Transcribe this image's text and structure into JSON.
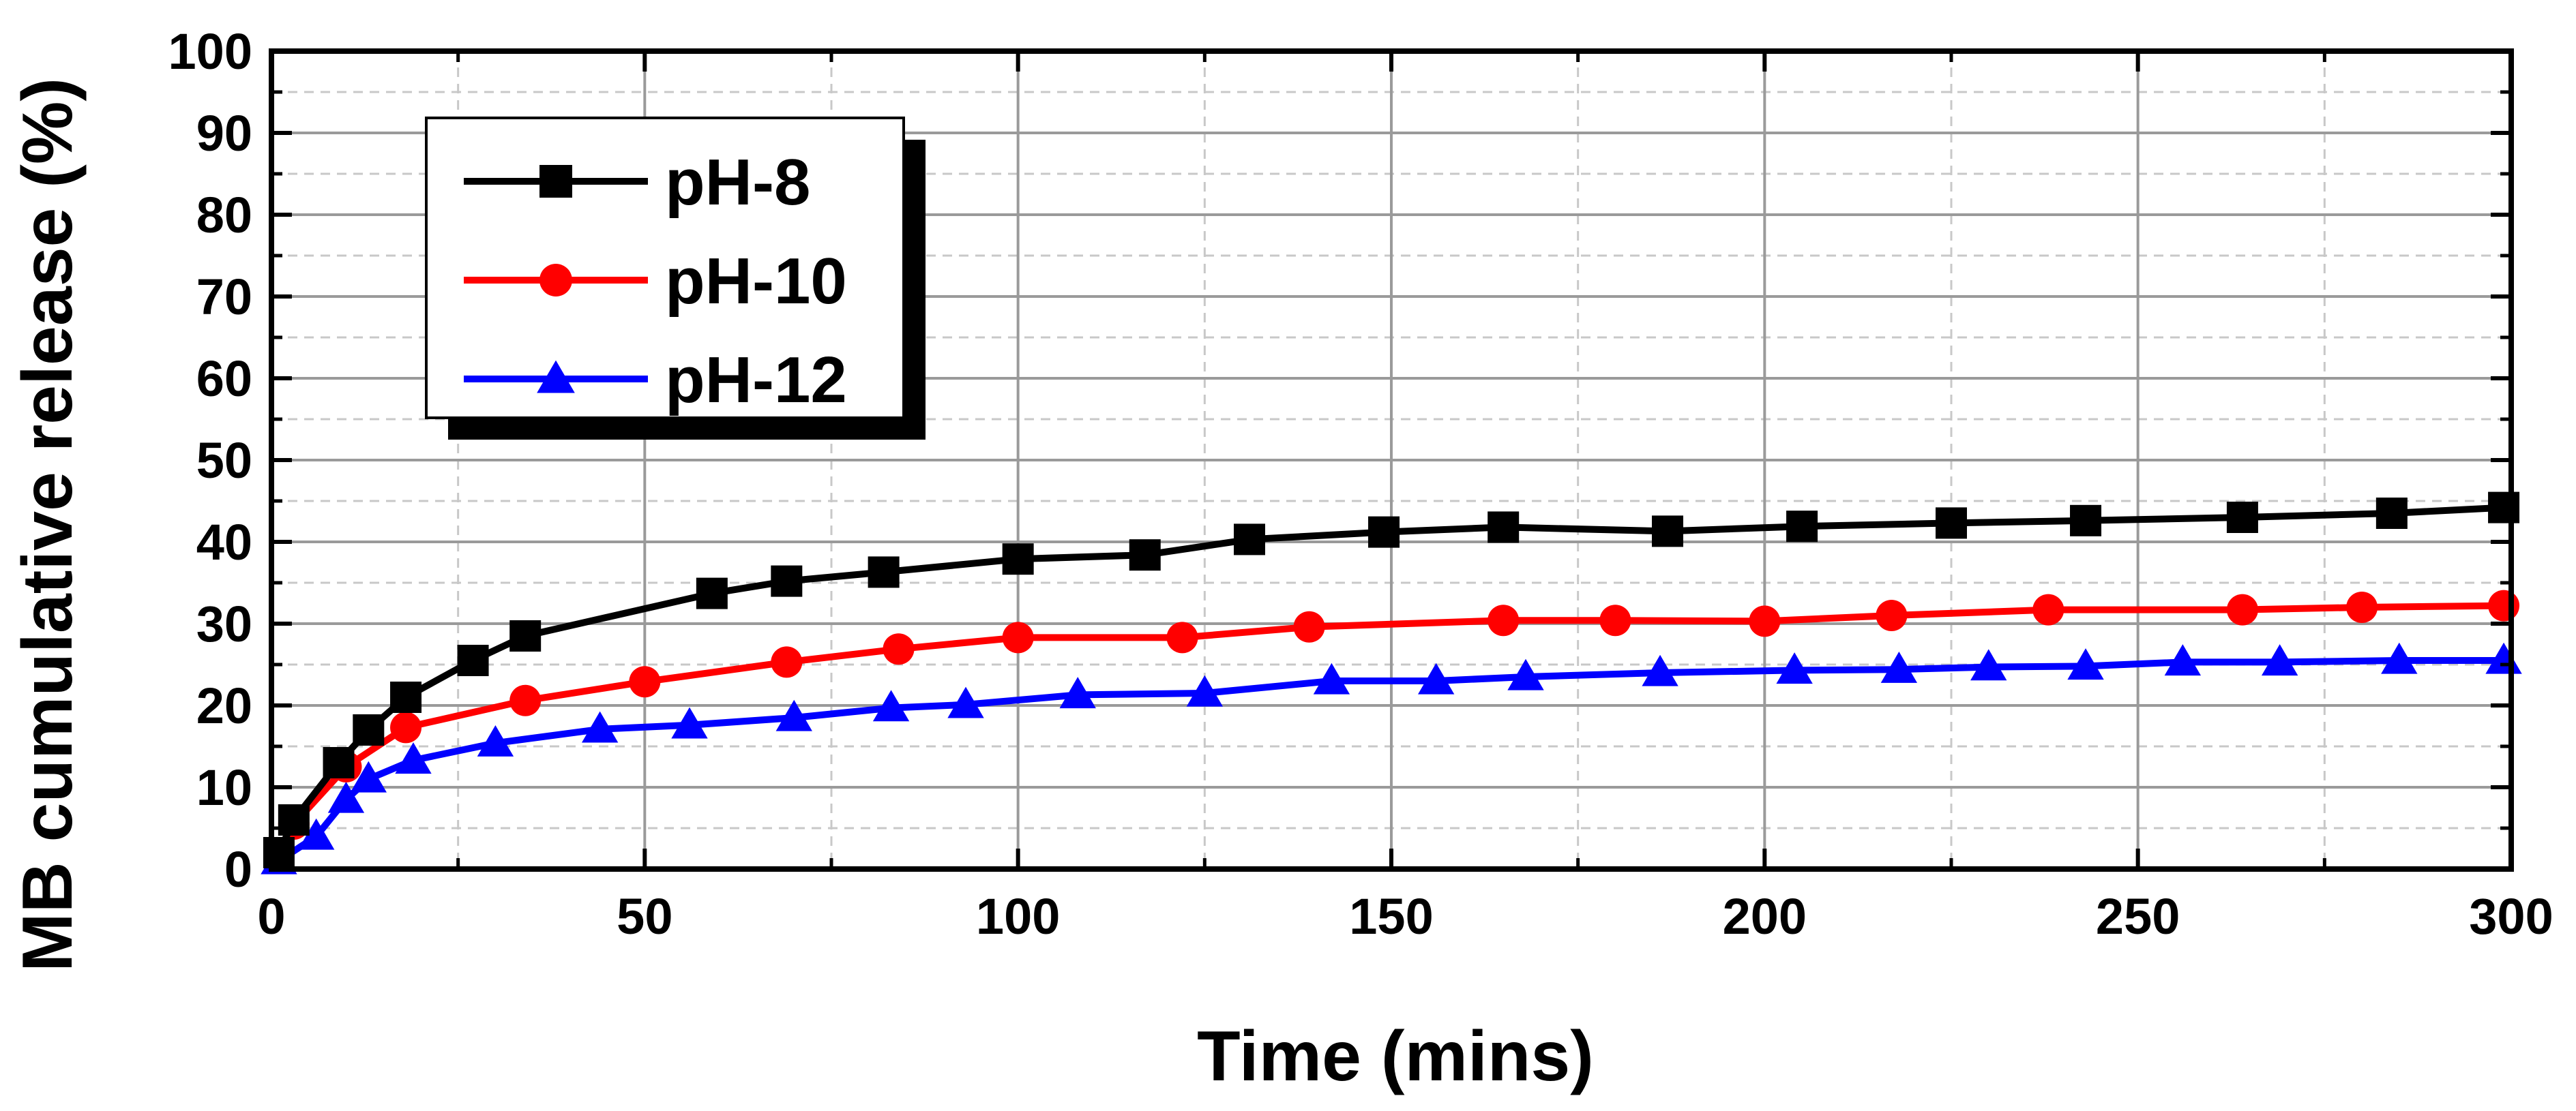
{
  "chart_data": {
    "type": "line",
    "title": "",
    "xlabel": "Time (mins)",
    "ylabel": "MB cumulative release (%)",
    "xlim": [
      0,
      300
    ],
    "ylim": [
      0,
      100
    ],
    "xticks": [
      0,
      50,
      100,
      150,
      200,
      250,
      300
    ],
    "yticks": [
      0,
      10,
      20,
      30,
      40,
      50,
      60,
      70,
      80,
      90,
      100
    ],
    "grid": true,
    "legend_position": "top-left",
    "series": [
      {
        "name": "pH-8",
        "color": "#000000",
        "marker": "square",
        "x": [
          1,
          3,
          9,
          13,
          18,
          27,
          34,
          59,
          69,
          82,
          100,
          117,
          131,
          149,
          165,
          187,
          205,
          225,
          243,
          264,
          284,
          299
        ],
        "y": [
          2,
          6,
          13,
          17,
          21,
          25.5,
          28.5,
          33.7,
          35.2,
          36.3,
          37.9,
          38.4,
          40.3,
          41.2,
          41.8,
          41.3,
          41.9,
          42.3,
          42.6,
          43,
          43.5,
          44.2
        ]
      },
      {
        "name": "pH-10",
        "color": "#ff0000",
        "marker": "circle",
        "x": [
          3,
          10,
          18,
          34,
          50,
          69,
          84,
          100,
          122,
          139,
          165,
          180,
          200,
          217,
          238,
          264,
          280,
          299
        ],
        "y": [
          5.5,
          12.5,
          17.3,
          20.6,
          22.9,
          25.3,
          26.9,
          28.3,
          28.3,
          29.6,
          30.4,
          30.4,
          30.3,
          31,
          31.7,
          31.7,
          32,
          32.2
        ]
      },
      {
        "name": "pH-12",
        "color": "#0000ff",
        "marker": "triangle",
        "x": [
          1,
          6,
          10,
          13,
          19,
          30,
          44,
          56,
          70,
          83,
          93,
          108,
          125,
          142,
          156,
          168,
          186,
          204,
          218,
          230,
          243,
          256,
          269,
          285,
          299
        ],
        "y": [
          1,
          4,
          8.5,
          11,
          13.3,
          15.4,
          17.1,
          17.6,
          18.5,
          19.7,
          20.1,
          21.3,
          21.5,
          23,
          23,
          23.5,
          24,
          24.3,
          24.4,
          24.7,
          24.8,
          25.3,
          25.3,
          25.5,
          25.5
        ]
      }
    ]
  }
}
